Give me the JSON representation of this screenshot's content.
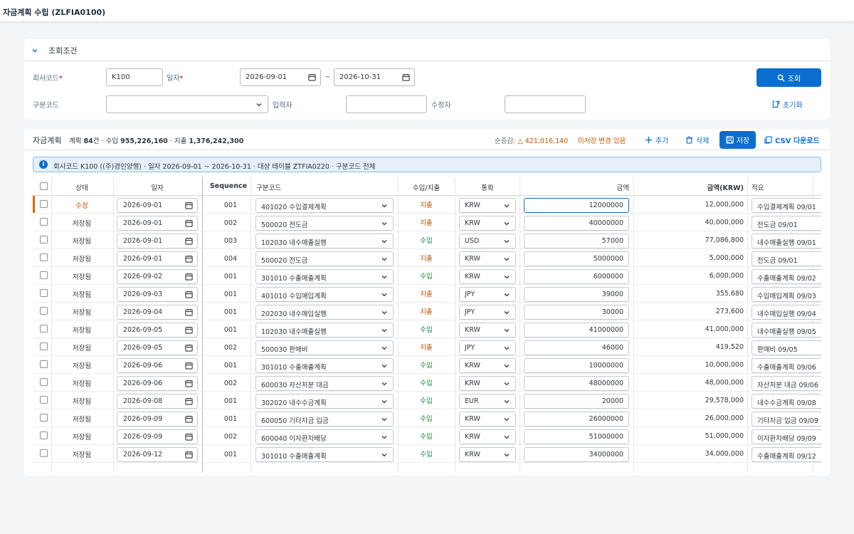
{
  "app": {
    "title": "자금계획 수립 (ZLFIA0100)"
  },
  "filter": {
    "title": "조회조건",
    "company_label": "회사코드",
    "company_value": "K100",
    "date_label": "일자",
    "date_from": "2026-09-01",
    "date_sep": "~",
    "date_to": "2026-10-31",
    "category_label": "구분코드",
    "category_value": "",
    "creator_label": "입력자",
    "creator_value": "",
    "modifier_label": "수정자",
    "modifier_value": "",
    "search_label": "조회",
    "reset_label": "초기화",
    "required_mark": "*"
  },
  "grid": {
    "title": "자금계획",
    "summary": {
      "plan_label": "계획",
      "plan_count": "84",
      "plan_unit": "건",
      "income_label": "수입",
      "income_total": "955,226,160",
      "expense_label": "지출",
      "expense_total": "1,376,242,300"
    },
    "net_label": "순증감:",
    "net_value": "△ 421,016,140",
    "unsaved_label": "미저장 변경 있음",
    "add_label": "추가",
    "delete_label": "삭제",
    "save_label": "저장",
    "csv_label": "CSV 다운로드",
    "info_text": "회사코드 K100 ((주)경인양행) · 일자 2026-09-01 ~ 2026-10-31 · 대상 테이블 ZTFIA0220 · 구분코드 전체",
    "columns": {
      "status": "상태",
      "date": "일자",
      "sequence": "Sequence",
      "code": "구분코드",
      "direction": "수입/지출",
      "currency": "통화",
      "amount": "금액",
      "amount_krw": "금액(KRW)",
      "memo": "적요"
    },
    "rows": [
      {
        "status": "수정",
        "date": "2026-09-01",
        "seq": "001",
        "code": "401020 수입결제계획",
        "dir": "지출",
        "cur": "KRW",
        "amount": "12000000",
        "krw": "12,000,000",
        "memo": "수입결제계획 09/01"
      },
      {
        "status": "저장됨",
        "date": "2026-09-01",
        "seq": "002",
        "code": "500020 전도금",
        "dir": "지출",
        "cur": "KRW",
        "amount": "40000000",
        "krw": "40,000,000",
        "memo": "전도금 09/01"
      },
      {
        "status": "저장됨",
        "date": "2026-09-01",
        "seq": "003",
        "code": "102030 내수매출실행",
        "dir": "수입",
        "cur": "USD",
        "amount": "57000",
        "krw": "77,086,800",
        "memo": "내수매출실행 09/01"
      },
      {
        "status": "저장됨",
        "date": "2026-09-01",
        "seq": "004",
        "code": "500020 전도금",
        "dir": "지출",
        "cur": "KRW",
        "amount": "5000000",
        "krw": "5,000,000",
        "memo": "전도금 09/01"
      },
      {
        "status": "저장됨",
        "date": "2026-09-02",
        "seq": "001",
        "code": "301010 수출매출계획",
        "dir": "수입",
        "cur": "KRW",
        "amount": "6000000",
        "krw": "6,000,000",
        "memo": "수출매출계획 09/02"
      },
      {
        "status": "저장됨",
        "date": "2026-09-03",
        "seq": "001",
        "code": "401010 수입매입계획",
        "dir": "지출",
        "cur": "JPY",
        "amount": "39000",
        "krw": "355,680",
        "memo": "수입매입계획 09/03"
      },
      {
        "status": "저장됨",
        "date": "2026-09-04",
        "seq": "001",
        "code": "202030 내수매입실행",
        "dir": "지출",
        "cur": "JPY",
        "amount": "30000",
        "krw": "273,600",
        "memo": "내수매입실행 09/04"
      },
      {
        "status": "저장됨",
        "date": "2026-09-05",
        "seq": "001",
        "code": "102030 내수매출실행",
        "dir": "수입",
        "cur": "KRW",
        "amount": "41000000",
        "krw": "41,000,000",
        "memo": "내수매출실행 09/05"
      },
      {
        "status": "저장됨",
        "date": "2026-09-05",
        "seq": "002",
        "code": "500030 판매비",
        "dir": "지출",
        "cur": "JPY",
        "amount": "46000",
        "krw": "419,520",
        "memo": "판매비 09/05"
      },
      {
        "status": "저장됨",
        "date": "2026-09-06",
        "seq": "001",
        "code": "301010 수출매출계획",
        "dir": "수입",
        "cur": "KRW",
        "amount": "10000000",
        "krw": "10,000,000",
        "memo": "수출매출계획 09/06"
      },
      {
        "status": "저장됨",
        "date": "2026-09-06",
        "seq": "002",
        "code": "600030 자산처분 대금",
        "dir": "수입",
        "cur": "KRW",
        "amount": "48000000",
        "krw": "48,000,000",
        "memo": "자산처분 대금 09/06"
      },
      {
        "status": "저장됨",
        "date": "2026-09-08",
        "seq": "001",
        "code": "302020 내수수금계획",
        "dir": "수입",
        "cur": "EUR",
        "amount": "20000",
        "krw": "29,578,000",
        "memo": "내수수금계획 09/08"
      },
      {
        "status": "저장됨",
        "date": "2026-09-09",
        "seq": "001",
        "code": "600050 기타자금 입금",
        "dir": "수입",
        "cur": "KRW",
        "amount": "26000000",
        "krw": "26,000,000",
        "memo": "기타자금 입금 09/09"
      },
      {
        "status": "저장됨",
        "date": "2026-09-09",
        "seq": "002",
        "code": "600040 이자환차배당",
        "dir": "수입",
        "cur": "KRW",
        "amount": "51000000",
        "krw": "51,000,000",
        "memo": "이자환차배당 09/09"
      },
      {
        "status": "저장됨",
        "date": "2026-09-12",
        "seq": "001",
        "code": "301010 수출매출계획",
        "dir": "수입",
        "cur": "KRW",
        "amount": "34000000",
        "krw": "34,000,000",
        "memo": "수출매출계획 09/12"
      }
    ]
  },
  "colors": {
    "accent": "#0a6ed1",
    "modified": "#c35500",
    "income": "#107e3e",
    "expense": "#c35500"
  },
  "icons": [
    "chevron-down-icon",
    "calendar-icon",
    "search-icon",
    "reset-icon",
    "plus-icon",
    "trash-icon",
    "save-icon",
    "csv-icon",
    "info-icon"
  ]
}
